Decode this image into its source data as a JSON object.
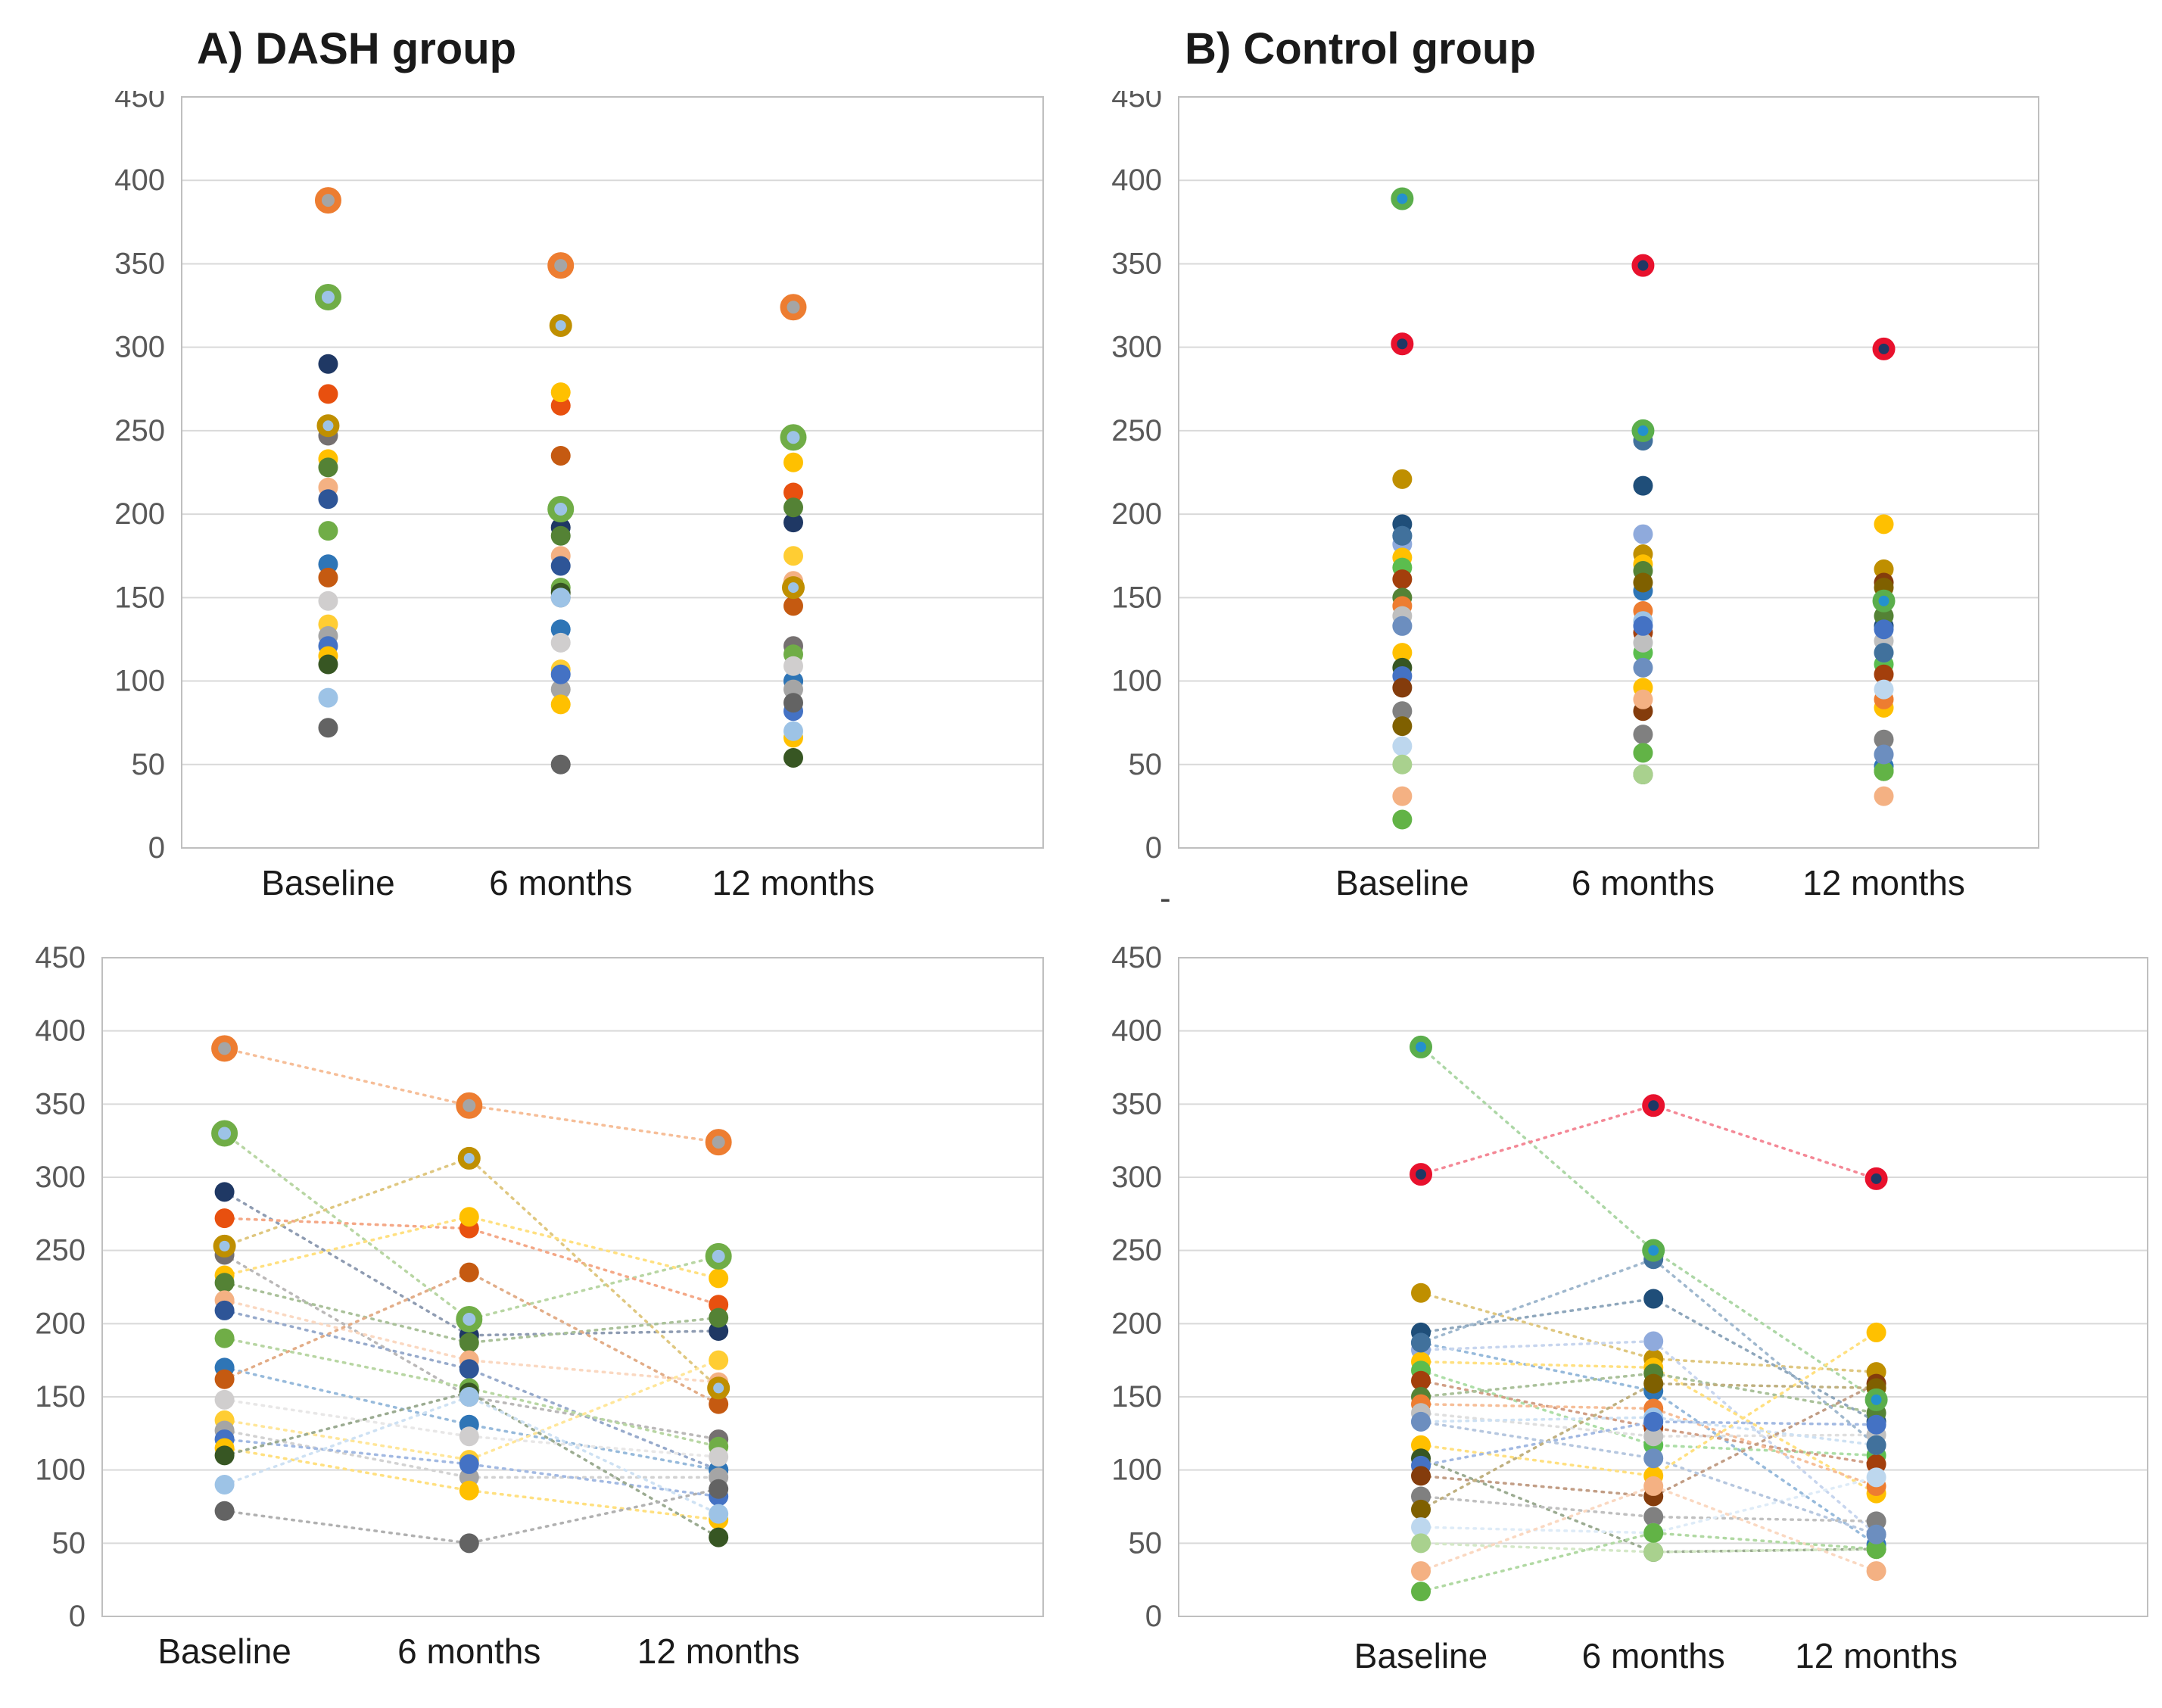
{
  "page": {
    "background": "#FFFFFF"
  },
  "stray_dash": "-",
  "chart_data": {
    "type": "scatter",
    "categories": [
      "Baseline",
      "6 months",
      "12 months"
    ],
    "ylim": [
      0,
      450
    ],
    "yticks": [
      0,
      50,
      100,
      150,
      200,
      250,
      300,
      350,
      400,
      450
    ],
    "grid": true,
    "legend": "none",
    "line_style": "dotted",
    "style": {
      "gridline_color": "#D9D9D9",
      "plot_border_color": "#BFBFBF",
      "tick_label_color": "#595959",
      "axis_label_color": "#1A1A1A",
      "title_color": "#1A1A1A"
    },
    "panels": [
      {
        "id": "dash_top",
        "title": "A) DASH group",
        "group": "dash",
        "lines": false
      },
      {
        "id": "control_top",
        "title": "B) Control group",
        "group": "control",
        "lines": false
      },
      {
        "id": "dash_bottom",
        "title": "",
        "group": "dash",
        "lines": true
      },
      {
        "id": "control_bottom",
        "title": "",
        "group": "control",
        "lines": true
      }
    ],
    "groups": {
      "dash": {
        "description": "Each series = one subject, values at Baseline, 6 months, 12 months",
        "series": [
          {
            "color": "#A5A5A5",
            "ring": "#ED7D31",
            "big": true,
            "values": [
              388,
              349,
              324
            ]
          },
          {
            "color": "#9DC3E6",
            "ring": "#70AD47",
            "big": true,
            "values": [
              330,
              203,
              246
            ]
          },
          {
            "color": "#1F3864",
            "values": [
              290,
              192,
              195
            ]
          },
          {
            "color": "#E8500F",
            "values": [
              272,
              265,
              213
            ]
          },
          {
            "color": "#9DC3E6",
            "ring": "#BF8F00",
            "values": [
              253,
              313,
              156
            ]
          },
          {
            "color": "#757070",
            "values": [
              247,
              150,
              121
            ]
          },
          {
            "color": "#FFC000",
            "values": [
              233,
              273,
              231
            ]
          },
          {
            "color": "#548235",
            "values": [
              228,
              187,
              204
            ]
          },
          {
            "color": "#F4B183",
            "values": [
              216,
              175,
              160
            ]
          },
          {
            "color": "#2E5597",
            "values": [
              209,
              169,
              100
            ]
          },
          {
            "color": "#70AD47",
            "values": [
              190,
              156,
              116
            ]
          },
          {
            "color": "#2E75B6",
            "values": [
              170,
              131,
              100
            ]
          },
          {
            "color": "#C55A11",
            "values": [
              162,
              235,
              145
            ]
          },
          {
            "color": "#D0CECE",
            "values": [
              148,
              123,
              109
            ]
          },
          {
            "color": "#FFCD33",
            "values": [
              134,
              107,
              175
            ]
          },
          {
            "color": "#A5A5A5",
            "values": [
              127,
              95,
              95
            ]
          },
          {
            "color": "#4472C4",
            "values": [
              121,
              104,
              82
            ]
          },
          {
            "color": "#FFC000",
            "values": [
              115,
              86,
              66
            ]
          },
          {
            "color": "#375623",
            "values": [
              110,
              153,
              54
            ]
          },
          {
            "color": "#9DC3E6",
            "values": [
              90,
              150,
              70
            ]
          },
          {
            "color": "#636363",
            "values": [
              72,
              50,
              87
            ]
          }
        ]
      },
      "control": {
        "description": "Each series = one subject, values at Baseline, 6 months, 12 months",
        "series": [
          {
            "color": "#2491CE",
            "ring": "#5BAE4C",
            "values": [
              389,
              250,
              148
            ]
          },
          {
            "color": "#1F3864",
            "ring": "#E8112D",
            "values": [
              302,
              349,
              299
            ]
          },
          {
            "color": "#BF8F00",
            "values": [
              221,
              176,
              167
            ]
          },
          {
            "color": "#1F4E79",
            "values": [
              194,
              217,
              133
            ]
          },
          {
            "color": "#2E75B6",
            "values": [
              187,
              154,
              49
            ]
          },
          {
            "color": "#8FAADC",
            "values": [
              182,
              188,
              56
            ]
          },
          {
            "color": "#FFC000",
            "values": [
              174,
              170,
              84
            ]
          },
          {
            "color": "#5BBD4E",
            "values": [
              168,
              117,
              110
            ]
          },
          {
            "color": "#A33F0C",
            "values": [
              161,
              129,
              104
            ]
          },
          {
            "color": "#548235",
            "values": [
              150,
              166,
              139
            ]
          },
          {
            "color": "#ED7D31",
            "values": [
              145,
              142,
              89
            ]
          },
          {
            "color": "#BFBFBF",
            "values": [
              139,
              123,
              124
            ]
          },
          {
            "color": "#9DC3E6",
            "values": [
              133,
              136,
              117
            ]
          },
          {
            "color": "#FFC000",
            "values": [
              117,
              96,
              194
            ]
          },
          {
            "color": "#375623",
            "values": [
              108,
              44,
              46
            ]
          },
          {
            "color": "#4472C4",
            "values": [
              103,
              133,
              131
            ]
          },
          {
            "color": "#843C0C",
            "values": [
              96,
              82,
              159
            ]
          },
          {
            "color": "#808080",
            "values": [
              82,
              68,
              65
            ]
          },
          {
            "color": "#7F6000",
            "values": [
              73,
              159,
              156
            ]
          },
          {
            "color": "#BDD7EE",
            "values": [
              61,
              57,
              95
            ]
          },
          {
            "color": "#A9D18E",
            "values": [
              50,
              44,
              46
            ]
          },
          {
            "color": "#F4B183",
            "values": [
              31,
              89,
              31
            ]
          },
          {
            "color": "#62B346",
            "values": [
              17,
              57,
              46
            ]
          },
          {
            "color": "#41719C",
            "values": [
              187,
              244,
              117
            ]
          },
          {
            "color": "#6C8EBF",
            "values": [
              133,
              108,
              56
            ]
          }
        ]
      }
    }
  }
}
